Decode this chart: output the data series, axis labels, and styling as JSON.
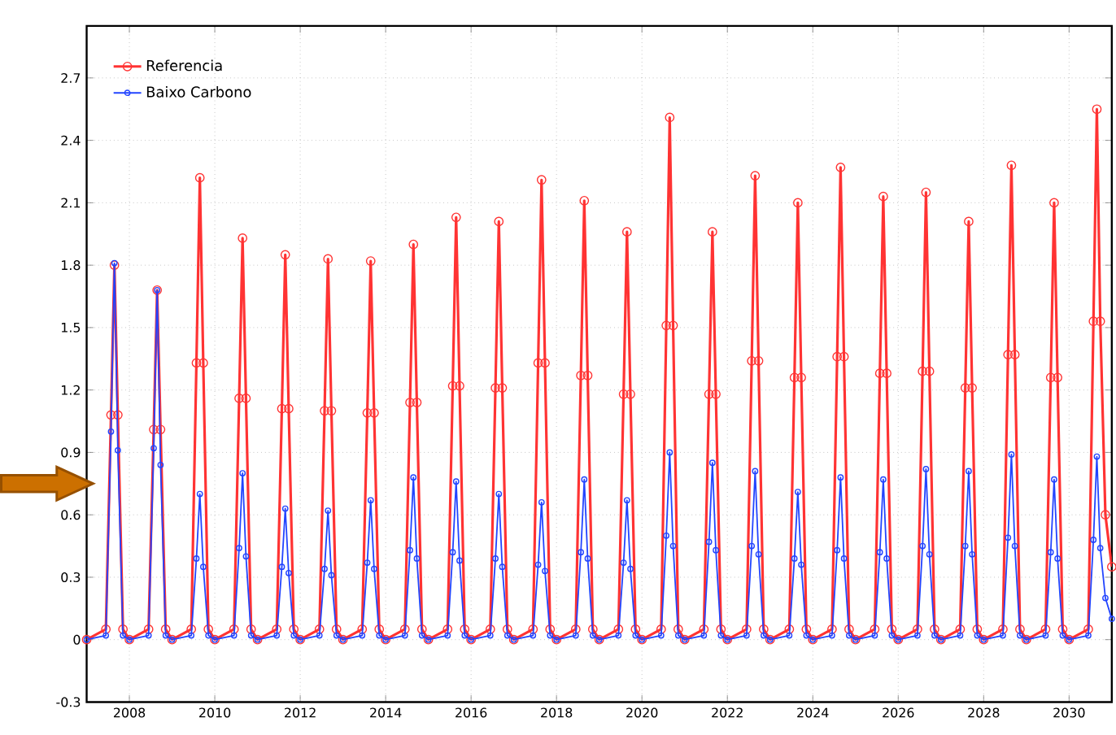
{
  "chart_data": {
    "type": "line",
    "x": [
      2007.0,
      2007.45,
      2007.57,
      2007.65,
      2007.73,
      2007.85,
      2008.0,
      2008.45,
      2008.57,
      2008.65,
      2008.73,
      2008.85,
      2009.0,
      2009.45,
      2009.57,
      2009.65,
      2009.73,
      2009.85,
      2010.0,
      2010.45,
      2010.57,
      2010.65,
      2010.73,
      2010.85,
      2011.0,
      2011.45,
      2011.57,
      2011.65,
      2011.73,
      2011.85,
      2012.0,
      2012.45,
      2012.57,
      2012.65,
      2012.73,
      2012.85,
      2013.0,
      2013.45,
      2013.57,
      2013.65,
      2013.73,
      2013.85,
      2014.0,
      2014.45,
      2014.57,
      2014.65,
      2014.73,
      2014.85,
      2015.0,
      2015.45,
      2015.57,
      2015.65,
      2015.73,
      2015.85,
      2016.0,
      2016.45,
      2016.57,
      2016.65,
      2016.73,
      2016.85,
      2017.0,
      2017.45,
      2017.57,
      2017.65,
      2017.73,
      2017.85,
      2018.0,
      2018.45,
      2018.57,
      2018.65,
      2018.73,
      2018.85,
      2019.0,
      2019.45,
      2019.57,
      2019.65,
      2019.73,
      2019.85,
      2020.0,
      2020.45,
      2020.57,
      2020.65,
      2020.73,
      2020.85,
      2021.0,
      2021.45,
      2021.57,
      2021.65,
      2021.73,
      2021.85,
      2022.0,
      2022.45,
      2022.57,
      2022.65,
      2022.73,
      2022.85,
      2023.0,
      2023.45,
      2023.57,
      2023.65,
      2023.73,
      2023.85,
      2024.0,
      2024.45,
      2024.57,
      2024.65,
      2024.73,
      2024.85,
      2025.0,
      2025.45,
      2025.57,
      2025.65,
      2025.73,
      2025.85,
      2026.0,
      2026.45,
      2026.57,
      2026.65,
      2026.73,
      2026.85,
      2027.0,
      2027.45,
      2027.57,
      2027.65,
      2027.73,
      2027.85,
      2028.0,
      2028.45,
      2028.57,
      2028.65,
      2028.73,
      2028.85,
      2029.0,
      2029.45,
      2029.57,
      2029.65,
      2029.73,
      2029.85,
      2030.0,
      2030.45,
      2030.57,
      2030.65,
      2030.73,
      2030.85,
      2031.0
    ],
    "series": [
      {
        "name": "Referencia",
        "color": "#ff3333",
        "values": [
          0,
          0.05,
          1.08,
          1.8,
          1.08,
          0.05,
          0,
          0.05,
          1.01,
          1.68,
          1.01,
          0.05,
          0,
          0.05,
          1.33,
          2.22,
          1.33,
          0.05,
          0,
          0.05,
          1.16,
          1.93,
          1.16,
          0.05,
          0,
          0.05,
          1.11,
          1.85,
          1.11,
          0.05,
          0,
          0.05,
          1.1,
          1.83,
          1.1,
          0.05,
          0,
          0.05,
          1.09,
          1.82,
          1.09,
          0.05,
          0,
          0.05,
          1.14,
          1.9,
          1.14,
          0.05,
          0,
          0.05,
          1.22,
          2.03,
          1.22,
          0.05,
          0,
          0.05,
          1.21,
          2.01,
          1.21,
          0.05,
          0,
          0.05,
          1.33,
          2.21,
          1.33,
          0.05,
          0,
          0.05,
          1.27,
          2.11,
          1.27,
          0.05,
          0,
          0.05,
          1.18,
          1.96,
          1.18,
          0.05,
          0,
          0.05,
          1.51,
          2.51,
          1.51,
          0.05,
          0,
          0.05,
          1.18,
          1.96,
          1.18,
          0.05,
          0,
          0.05,
          1.34,
          2.23,
          1.34,
          0.05,
          0,
          0.05,
          1.26,
          2.1,
          1.26,
          0.05,
          0,
          0.05,
          1.36,
          2.27,
          1.36,
          0.05,
          0,
          0.05,
          1.28,
          2.13,
          1.28,
          0.05,
          0,
          0.05,
          1.29,
          2.15,
          1.29,
          0.05,
          0,
          0.05,
          1.21,
          2.01,
          1.21,
          0.05,
          0,
          0.05,
          1.37,
          2.28,
          1.37,
          0.05,
          0,
          0.05,
          1.26,
          2.1,
          1.26,
          0.05,
          0,
          0.05,
          1.53,
          2.55,
          1.53,
          0.6,
          0.35
        ]
      },
      {
        "name": "Baixo Carbono",
        "color": "#2244ff",
        "values": [
          0,
          0.02,
          1.0,
          1.81,
          0.91,
          0.02,
          0,
          0.02,
          0.92,
          1.68,
          0.84,
          0.02,
          0,
          0.02,
          0.39,
          0.7,
          0.35,
          0.02,
          0,
          0.02,
          0.44,
          0.8,
          0.4,
          0.02,
          0,
          0.02,
          0.35,
          0.63,
          0.32,
          0.02,
          0,
          0.02,
          0.34,
          0.62,
          0.31,
          0.02,
          0,
          0.02,
          0.37,
          0.67,
          0.34,
          0.02,
          0,
          0.02,
          0.43,
          0.78,
          0.39,
          0.02,
          0,
          0.02,
          0.42,
          0.76,
          0.38,
          0.02,
          0,
          0.02,
          0.39,
          0.7,
          0.35,
          0.02,
          0,
          0.02,
          0.36,
          0.66,
          0.33,
          0.02,
          0,
          0.02,
          0.42,
          0.77,
          0.39,
          0.02,
          0,
          0.02,
          0.37,
          0.67,
          0.34,
          0.02,
          0,
          0.02,
          0.5,
          0.9,
          0.45,
          0.02,
          0,
          0.02,
          0.47,
          0.85,
          0.43,
          0.02,
          0,
          0.02,
          0.45,
          0.81,
          0.41,
          0.02,
          0,
          0.02,
          0.39,
          0.71,
          0.36,
          0.02,
          0,
          0.02,
          0.43,
          0.78,
          0.39,
          0.02,
          0,
          0.02,
          0.42,
          0.77,
          0.39,
          0.02,
          0,
          0.02,
          0.45,
          0.82,
          0.41,
          0.02,
          0,
          0.02,
          0.45,
          0.81,
          0.41,
          0.02,
          0,
          0.02,
          0.49,
          0.89,
          0.45,
          0.02,
          0,
          0.02,
          0.42,
          0.77,
          0.39,
          0.02,
          0,
          0.02,
          0.48,
          0.88,
          0.44,
          0.2,
          0.1
        ]
      }
    ],
    "xlim": [
      2007,
      2031
    ],
    "xticks": [
      2008,
      2010,
      2012,
      2014,
      2016,
      2018,
      2020,
      2022,
      2024,
      2026,
      2028,
      2030
    ],
    "ylim": [
      -0.3,
      2.95
    ],
    "yticks": [
      -0.3,
      0,
      0.3,
      0.6,
      0.9,
      1.2,
      1.5,
      1.8,
      2.1,
      2.4,
      2.7
    ],
    "grid": true,
    "legend": "top left",
    "marker": "circle",
    "line_style": "solid"
  }
}
